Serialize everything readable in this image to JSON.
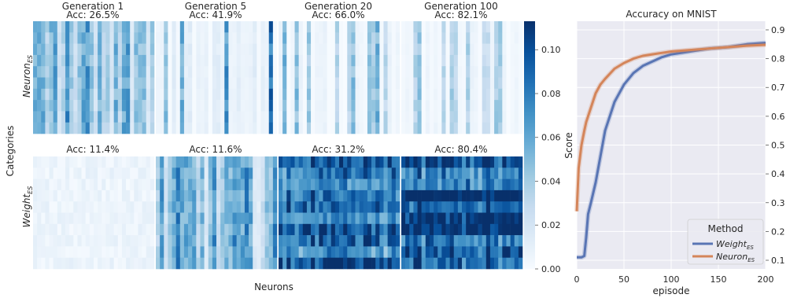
{
  "figure": {
    "heatmaps": {
      "ylabel": "Categories",
      "xlabel": "Neurons",
      "row_labels": [
        {
          "main": "Neuron",
          "sub": "ES"
        },
        {
          "main": "Weight",
          "sub": "ES"
        }
      ],
      "column_titles": [
        "Generation 1",
        "Generation 5",
        "Generation 20",
        "Generation 100"
      ],
      "top_row_acc": [
        "Acc: 26.5%",
        "Acc: 41.9%",
        "Acc: 66.0%",
        "Acc: 82.1%"
      ],
      "bottom_row_acc": [
        "Acc: 11.4%",
        "Acc: 11.6%",
        "Acc: 31.2%",
        "Acc: 80.4%"
      ],
      "colorbar_ticks": [
        "0.00",
        "0.02",
        "0.04",
        "0.06",
        "0.08",
        "0.10"
      ],
      "colormap": [
        "#f7fbff",
        "#deebf7",
        "#c6dbef",
        "#9ecae1",
        "#6baed6",
        "#4292c6",
        "#2171b5",
        "#08519c",
        "#08306b"
      ]
    },
    "lines": {
      "title": "Accuracy on MNIST",
      "xlabel": "episode",
      "ylabel": "Score",
      "xticks": [
        "0",
        "50",
        "100",
        "150",
        "200"
      ],
      "yticks": [
        "0.1",
        "0.2",
        "0.3",
        "0.4",
        "0.5",
        "0.6",
        "0.7",
        "0.8",
        "0.9"
      ],
      "legend_title": "Method",
      "legend": [
        {
          "main": "Weight",
          "sub": "ES"
        },
        {
          "main": "Neuron",
          "sub": "ES"
        }
      ],
      "colors": {
        "weight": "#5975b4",
        "neuron": "#d4855a",
        "grid_bg": "#eaeaf2"
      }
    }
  },
  "chart_data": [
    {
      "type": "heatmap",
      "xlabel": "Neurons",
      "ylabel": "Categories",
      "value_range": [
        0.0,
        0.113
      ],
      "rows": [
        "NeuronES",
        "WeightES"
      ],
      "columns": [
        "Generation 1",
        "Generation 5",
        "Generation 20",
        "Generation 100"
      ],
      "accuracy": {
        "NeuronES": [
          26.5,
          41.9,
          66.0,
          82.1
        ],
        "WeightES": [
          11.4,
          11.6,
          31.2,
          80.4
        ]
      },
      "approx_mean_cell_value": {
        "NeuronES": [
          0.04,
          0.015,
          0.01,
          0.008
        ],
        "WeightES": [
          0.004,
          0.04,
          0.085,
          0.095
        ]
      }
    },
    {
      "type": "line",
      "title": "Accuracy on MNIST",
      "xlabel": "episode",
      "ylabel": "Score",
      "xlim": [
        0,
        200
      ],
      "ylim": [
        0.07,
        0.93
      ],
      "grid": true,
      "legend_position": "bottom-right",
      "series": [
        {
          "name": "WeightES",
          "x": [
            0,
            5,
            8,
            10,
            12,
            15,
            20,
            25,
            30,
            40,
            50,
            60,
            70,
            80,
            90,
            100,
            120,
            140,
            160,
            180,
            200
          ],
          "y": [
            0.11,
            0.11,
            0.115,
            0.18,
            0.26,
            0.3,
            0.37,
            0.46,
            0.55,
            0.65,
            0.71,
            0.75,
            0.775,
            0.79,
            0.805,
            0.815,
            0.825,
            0.835,
            0.84,
            0.85,
            0.855
          ]
        },
        {
          "name": "NeuronES",
          "x": [
            0,
            2,
            5,
            8,
            10,
            15,
            20,
            25,
            30,
            40,
            50,
            60,
            70,
            80,
            90,
            100,
            120,
            140,
            160,
            180,
            200
          ],
          "y": [
            0.27,
            0.42,
            0.5,
            0.55,
            0.58,
            0.63,
            0.68,
            0.71,
            0.73,
            0.765,
            0.785,
            0.8,
            0.81,
            0.815,
            0.82,
            0.825,
            0.83,
            0.835,
            0.84,
            0.845,
            0.848
          ]
        }
      ]
    }
  ]
}
